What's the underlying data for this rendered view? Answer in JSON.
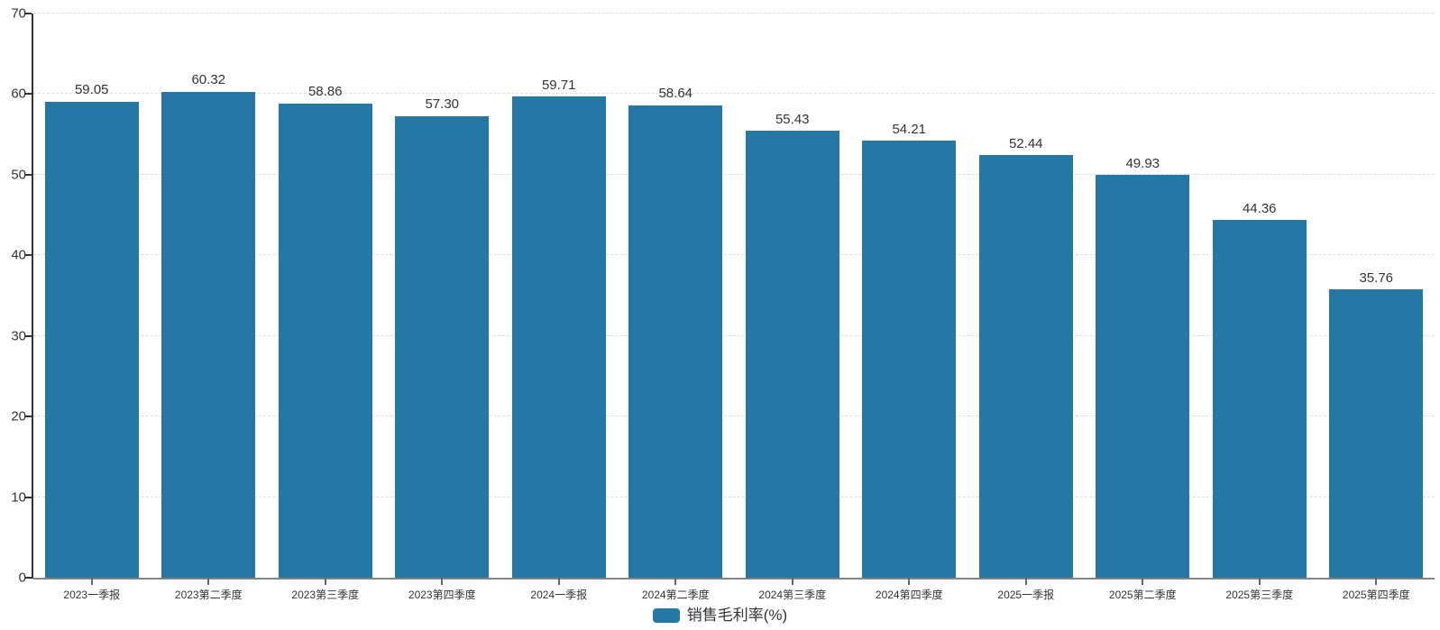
{
  "chart_data": {
    "type": "bar",
    "title": "",
    "xlabel": "",
    "ylabel": "",
    "categories": [
      "2023一季报",
      "2023第二季度",
      "2023第三季度",
      "2023第四季度",
      "2024一季报",
      "2024第二季度",
      "2024第三季度",
      "2024第四季度",
      "2025一季报",
      "2025第二季度",
      "2025第三季度",
      "2025第四季度"
    ],
    "values": [
      59.05,
      60.32,
      58.86,
      57.3,
      59.71,
      58.64,
      55.43,
      54.21,
      52.44,
      49.93,
      44.36,
      35.76
    ],
    "value_labels": [
      "59.05",
      "60.32",
      "58.86",
      "57.30",
      "59.71",
      "58.64",
      "55.43",
      "54.21",
      "52.44",
      "49.93",
      "44.36",
      "35.76"
    ],
    "series_name": "销售毛利率(%)",
    "ylim": [
      0,
      70
    ],
    "yticks": [
      0,
      10,
      20,
      30,
      40,
      50,
      60,
      70
    ],
    "grid": "horizontal-dashed",
    "legend_position": "bottom-center",
    "bar_color": "#2578a6",
    "background_color": "#ffffff",
    "axis_text_color": "#333333",
    "gridline_color": "#dddddd"
  }
}
